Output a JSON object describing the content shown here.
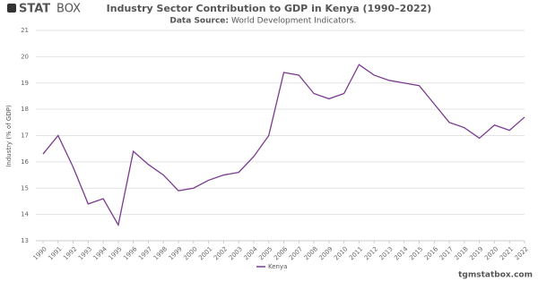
{
  "logo": {
    "bold": "STAT",
    "light": "BOX"
  },
  "footer": "tgmstatbox.com",
  "chart_data": {
    "type": "line",
    "title": "Industry Sector Contribution to GDP in Kenya (1990–2022)",
    "source_label": "Data Source:",
    "source": "World Development Indicators.",
    "y_label": "Industry (% of GDP)",
    "x": [
      1990,
      1991,
      1992,
      1993,
      1994,
      1995,
      1996,
      1997,
      1998,
      1999,
      2000,
      2001,
      2002,
      2003,
      2004,
      2005,
      2006,
      2007,
      2008,
      2009,
      2010,
      2011,
      2012,
      2013,
      2014,
      2015,
      2016,
      2017,
      2018,
      2019,
      2020,
      2021,
      2022
    ],
    "xlim": [
      1990,
      2022
    ],
    "series": [
      {
        "name": "Kenya",
        "color": "#7a3b8f",
        "values": [
          16.3,
          17.0,
          15.8,
          14.4,
          14.6,
          13.6,
          16.4,
          15.9,
          15.5,
          14.9,
          15.0,
          15.3,
          15.5,
          15.6,
          16.2,
          17.0,
          19.4,
          19.3,
          18.6,
          18.4,
          18.6,
          19.7,
          19.3,
          19.1,
          19.0,
          18.9,
          18.2,
          17.5,
          17.3,
          16.9,
          17.4,
          17.2,
          17.7
        ]
      }
    ],
    "ylim": [
      13,
      21
    ],
    "yticks": [
      13,
      14,
      15,
      16,
      17,
      18,
      19,
      20,
      21
    ],
    "grid": true,
    "legend": "bottom"
  }
}
